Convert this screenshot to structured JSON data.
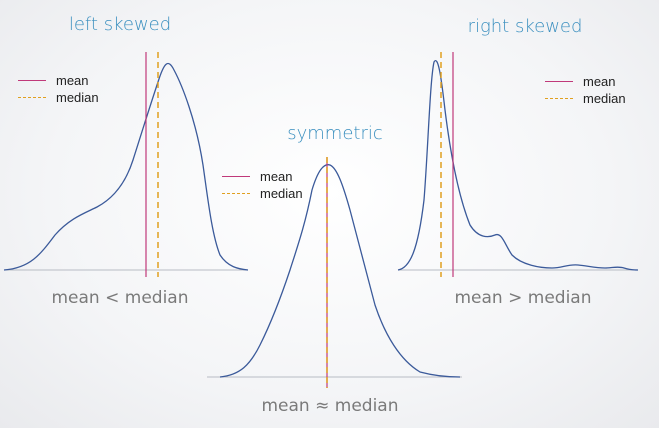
{
  "colors": {
    "title": "#3a8fbf",
    "density": "#3b5a9a",
    "mean": "#c0397a",
    "median": "#e0a020",
    "axis": "#b8bcc4",
    "caption": "#7a7a7a"
  },
  "panels": {
    "left": {
      "title": "left skewed",
      "caption": "mean < median",
      "legend": {
        "mean": "mean",
        "median": "median"
      }
    },
    "middle": {
      "title": "symmetric",
      "caption": "mean ≈ median",
      "legend": {
        "mean": "mean",
        "median": "median"
      }
    },
    "right": {
      "title": "right skewed",
      "caption": "mean > median",
      "legend": {
        "mean": "mean",
        "median": "median"
      }
    }
  }
}
